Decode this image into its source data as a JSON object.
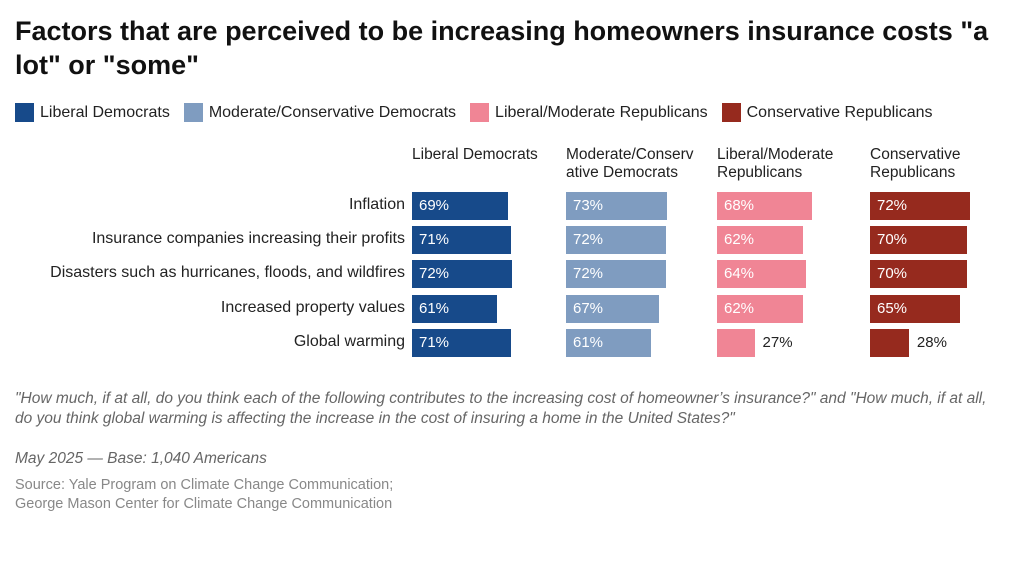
{
  "chart_data": {
    "type": "bar",
    "title": "Factors that are perceived to be increasing homeowners insurance costs \"a lot\" or \"some\"",
    "categories": [
      "Inflation",
      "Insurance companies increasing their profits",
      "Disasters such as hurricanes, floods, and wildfires",
      "Increased property values",
      "Global warming"
    ],
    "series": [
      {
        "name": "Liberal Democrats",
        "header": "Liberal Democrats",
        "color": "#174a8a",
        "values": [
          69,
          71,
          72,
          61,
          71
        ]
      },
      {
        "name": "Moderate/Conservative Democrats",
        "header": "Moderate/Conserv ative Democrats",
        "color": "#7f9cc0",
        "values": [
          73,
          72,
          72,
          67,
          61
        ]
      },
      {
        "name": "Liberal/Moderate Republicans",
        "header": "Liberal/Moderate Republicans",
        "color": "#f08595",
        "values": [
          68,
          62,
          64,
          62,
          27
        ]
      },
      {
        "name": "Conservative Republicans",
        "header": "Conservative Republicans",
        "color": "#962a1e",
        "values": [
          72,
          70,
          70,
          65,
          28
        ]
      }
    ],
    "unit": "%"
  },
  "note": "\"How much, if at all, do you think each of the following contributes to the increasing cost of homeowner’s insurance?\" and \"How much, if at all, do you think global warming is affecting the increase in the cost of insuring a home in the United States?\"",
  "base": "May 2025 — Base: 1,040 Americans",
  "source_line1": "Source: Yale Program on Climate Change Communication;",
  "source_line2": "George Mason Center for Climate Change Communication"
}
